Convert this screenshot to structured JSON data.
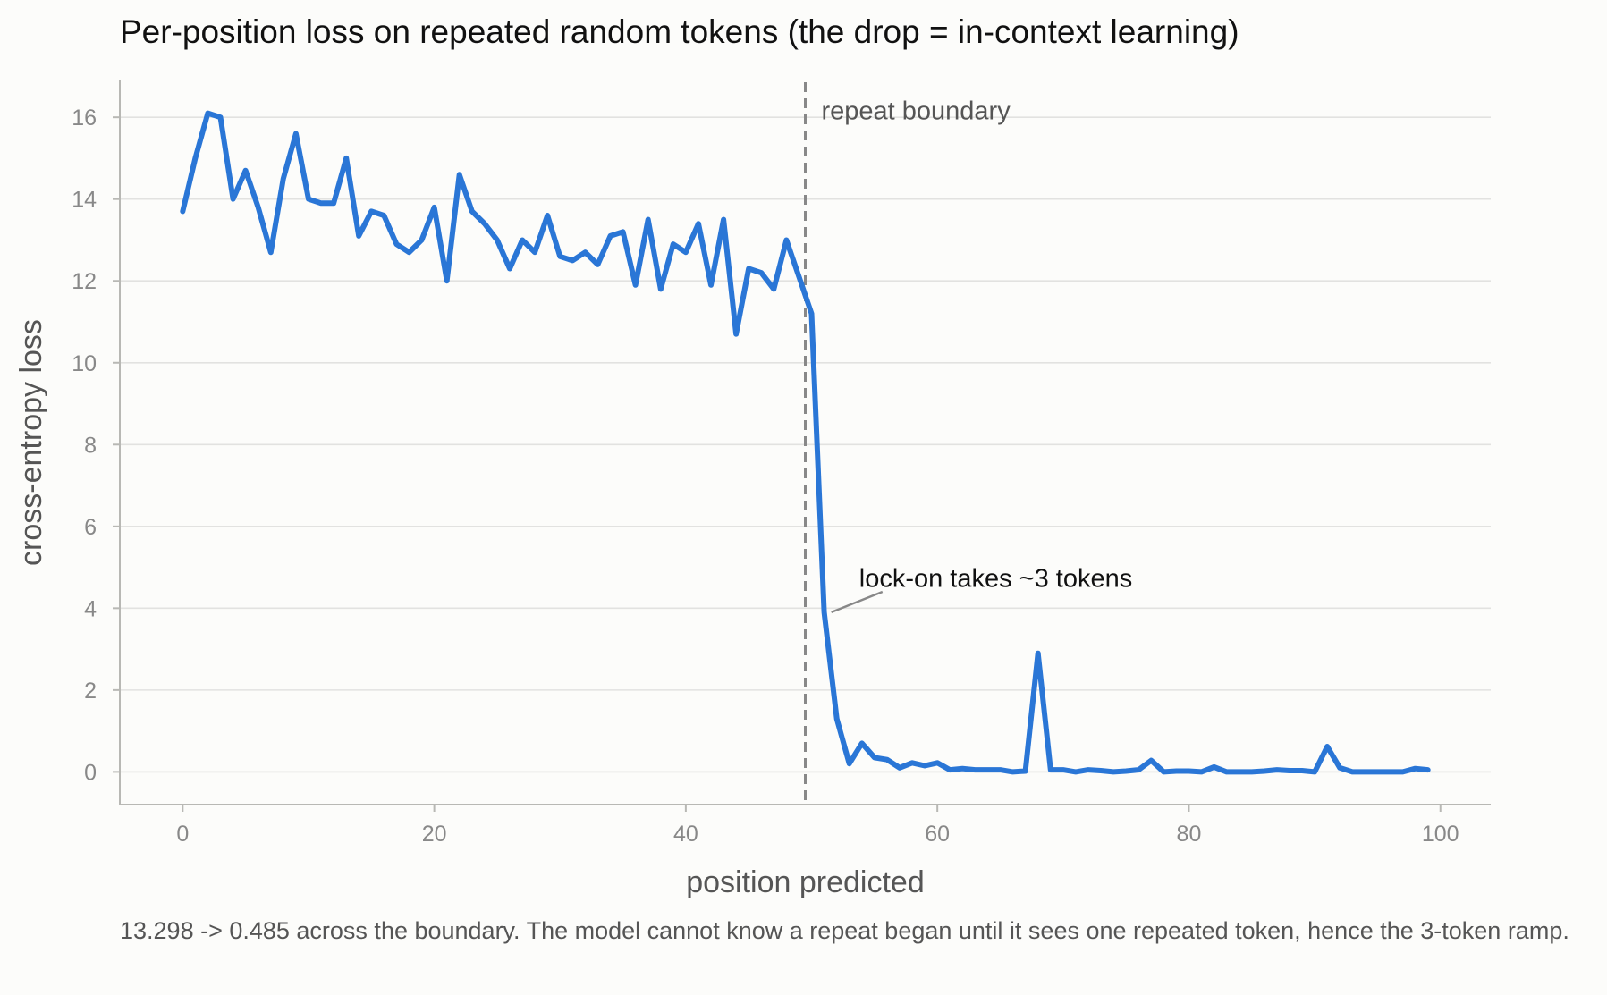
{
  "chart_data": {
    "type": "line",
    "title": "Per-position loss on repeated random tokens (the drop = in-context learning)",
    "xlabel": "position predicted",
    "ylabel": "cross-entropy loss",
    "xlim": [
      -5,
      104
    ],
    "ylim": [
      -0.8,
      16.9
    ],
    "xticks": [
      0,
      20,
      40,
      60,
      80,
      100
    ],
    "yticks": [
      0,
      2,
      4,
      6,
      8,
      10,
      12,
      14,
      16
    ],
    "grid": "horizontal",
    "series": [
      {
        "color": "#2a76d6",
        "x": [
          0,
          1,
          2,
          3,
          4,
          5,
          6,
          7,
          8,
          9,
          10,
          11,
          12,
          13,
          14,
          15,
          16,
          17,
          18,
          19,
          20,
          21,
          22,
          23,
          24,
          25,
          26,
          27,
          28,
          29,
          30,
          31,
          32,
          33,
          34,
          35,
          36,
          37,
          38,
          39,
          40,
          41,
          42,
          43,
          44,
          45,
          46,
          47,
          48,
          49,
          50,
          51,
          52,
          53,
          54,
          55,
          56,
          57,
          58,
          59,
          60,
          61,
          62,
          63,
          64,
          65,
          66,
          67,
          68,
          69,
          70,
          71,
          72,
          73,
          74,
          75,
          76,
          77,
          78,
          79,
          80,
          81,
          82,
          83,
          84,
          85,
          86,
          87,
          88,
          89,
          90,
          91,
          92,
          93,
          94,
          95,
          96,
          97,
          98,
          99
        ],
        "values": [
          13.7,
          15.0,
          16.1,
          16.0,
          14.0,
          14.7,
          13.8,
          12.7,
          14.5,
          15.6,
          14.0,
          13.9,
          13.9,
          15.0,
          13.1,
          13.7,
          13.6,
          12.9,
          12.7,
          13.0,
          13.8,
          12.0,
          14.6,
          13.7,
          13.4,
          13.0,
          12.3,
          13.0,
          12.7,
          13.6,
          12.6,
          12.5,
          12.7,
          12.4,
          13.1,
          13.2,
          11.9,
          13.5,
          11.8,
          12.9,
          12.7,
          13.4,
          11.9,
          13.5,
          10.7,
          12.3,
          12.2,
          11.8,
          13.0,
          12.1,
          11.2,
          3.9,
          1.3,
          0.2,
          0.7,
          0.35,
          0.3,
          0.1,
          0.22,
          0.15,
          0.22,
          0.05,
          0.08,
          0.05,
          0.05,
          0.05,
          0.0,
          0.02,
          2.9,
          0.05,
          0.05,
          0.0,
          0.05,
          0.03,
          0.0,
          0.02,
          0.05,
          0.28,
          0.0,
          0.02,
          0.02,
          0.0,
          0.12,
          0.0,
          0.0,
          0.0,
          0.02,
          0.05,
          0.03,
          0.03,
          0.0,
          0.62,
          0.1,
          0.0,
          0.0,
          0.0,
          0.0,
          0.0,
          0.08,
          0.05
        ]
      }
    ],
    "vline": {
      "x": 49.5,
      "label": "repeat boundary",
      "color": "#888888"
    },
    "annotation": {
      "text": "lock-on takes ~3 tokens",
      "point": [
        51,
        3.9
      ],
      "text_at": [
        53.5,
        4.7
      ]
    }
  },
  "caption": "13.298 -> 0.485 across the boundary. The model cannot know a repeat began until it sees one repeated token, hence the 3-token ramp."
}
